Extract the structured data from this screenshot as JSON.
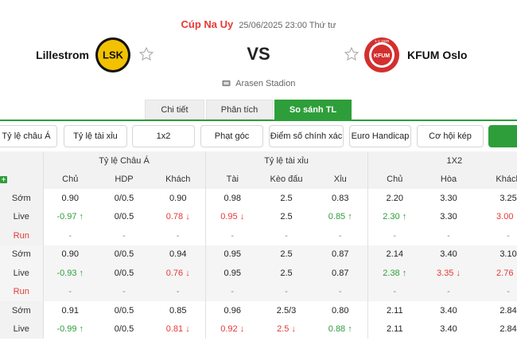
{
  "match": {
    "league": "Cúp Na Uy",
    "datetime": "25/06/2025 23:00 Thứ tư",
    "vs": "VS",
    "stadium": "Arasen Stadion",
    "home": {
      "name": "Lillestrom",
      "logo_text": "LSK",
      "logo_color": "#f2c200"
    },
    "away": {
      "name": "KFUM Oslo",
      "logo_text": "KFUM",
      "logo_color": "#d32f2f",
      "logo_year": "1-1-1939"
    }
  },
  "tabs": [
    {
      "label": "Chi tiết",
      "active": false
    },
    {
      "label": "Phân tích",
      "active": false
    },
    {
      "label": "So sánh TL",
      "active": true
    }
  ],
  "filters": [
    "Tỷ lệ châu Á",
    "Tỷ lệ tài xỉu",
    "1x2",
    "Phạt góc",
    "Điểm số chính xác",
    "Euro Handicap",
    "Cơ hội kép",
    ""
  ],
  "colors": {
    "accent": "#2e9e3a",
    "up": "#2e9e3a",
    "down": "#e53935"
  },
  "table": {
    "groups": [
      "Tỷ lệ Châu Á",
      "Tỷ lệ tài xỉu",
      "1X2"
    ],
    "columns": [
      "Chủ",
      "HDP",
      "Khách",
      "Tài",
      "Kèo đấu",
      "Xỉu",
      "Chủ",
      "Hòa",
      "Khách"
    ],
    "blocks": [
      {
        "rows": [
          {
            "label": "Sớm",
            "cells": [
              "0.90",
              "0/0.5",
              "0.90",
              "0.98",
              "2.5",
              "0.83",
              "2.20",
              "3.30",
              "3.25"
            ],
            "dirs": [
              "",
              "",
              "",
              "",
              "",
              "",
              "",
              "",
              ""
            ]
          },
          {
            "label": "Live",
            "cells": [
              "-0.97",
              "0/0.5",
              "0.78",
              "0.95",
              "2.5",
              "0.85",
              "2.30",
              "3.30",
              "3.00"
            ],
            "dirs": [
              "up",
              "",
              "down",
              "down",
              "",
              "up",
              "up",
              "",
              "down"
            ]
          },
          {
            "label": "Run",
            "cells": [
              "-",
              "-",
              "-",
              "-",
              "-",
              "-",
              "-",
              "-",
              "-"
            ],
            "dirs": [
              "",
              "",
              "",
              "",
              "",
              "",
              "",
              "",
              ""
            ]
          }
        ]
      },
      {
        "rows": [
          {
            "label": "Sớm",
            "cells": [
              "0.90",
              "0/0.5",
              "0.94",
              "0.95",
              "2.5",
              "0.87",
              "2.14",
              "3.40",
              "3.10"
            ],
            "dirs": [
              "",
              "",
              "",
              "",
              "",
              "",
              "",
              "",
              ""
            ]
          },
          {
            "label": "Live",
            "cells": [
              "-0.93",
              "0/0.5",
              "0.76",
              "0.95",
              "2.5",
              "0.87",
              "2.38",
              "3.35",
              "2.76"
            ],
            "dirs": [
              "up",
              "",
              "down",
              "",
              "",
              "",
              "up",
              "down",
              "down"
            ]
          },
          {
            "label": "Run",
            "cells": [
              "-",
              "-",
              "-",
              "-",
              "-",
              "-",
              "-",
              "-",
              "-"
            ],
            "dirs": [
              "",
              "",
              "",
              "",
              "",
              "",
              "",
              "",
              ""
            ]
          }
        ]
      },
      {
        "rows": [
          {
            "label": "Sớm",
            "cells": [
              "0.91",
              "0/0.5",
              "0.85",
              "0.96",
              "2.5/3",
              "0.80",
              "2.11",
              "3.40",
              "2.84"
            ],
            "dirs": [
              "",
              "",
              "",
              "",
              "",
              "",
              "",
              "",
              ""
            ]
          },
          {
            "label": "Live",
            "cells": [
              "-0.99",
              "0/0.5",
              "0.81",
              "0.92",
              "2.5",
              "0.88",
              "2.11",
              "3.40",
              "2.84"
            ],
            "dirs": [
              "up",
              "",
              "down",
              "down",
              "down",
              "up",
              "",
              "",
              ""
            ]
          }
        ]
      }
    ]
  }
}
